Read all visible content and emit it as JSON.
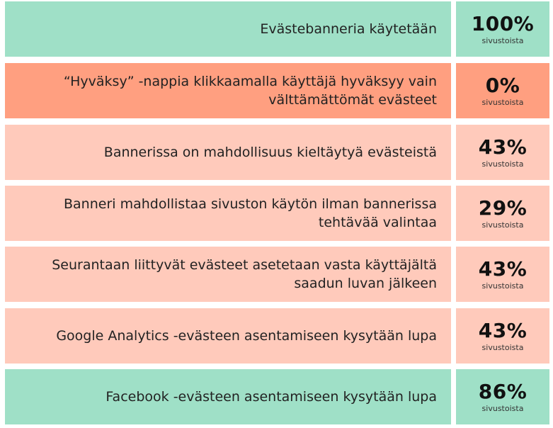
{
  "colors": {
    "good": "#9fe0c7",
    "bad": "#ff9f80",
    "neutral": "#ffcabb"
  },
  "chart_data": {
    "type": "table",
    "unit_label": "sivustoista",
    "rows": [
      {
        "label": "Evästebanneria käytetään",
        "value": 100,
        "display": "100%",
        "status": "good"
      },
      {
        "label": "“Hyväksy” -nappia klikkaamalla käyttäjä hyväksyy vain välttämättömät evästeet",
        "value": 0,
        "display": "0%",
        "status": "bad"
      },
      {
        "label": "Bannerissa on mahdollisuus kieltäytyä evästeistä",
        "value": 43,
        "display": "43%",
        "status": "neutral"
      },
      {
        "label": "Banneri mahdollistaa sivuston käytön ilman bannerissa tehtävää valintaa",
        "value": 29,
        "display": "29%",
        "status": "neutral"
      },
      {
        "label": "Seurantaan liittyvät evästeet asetetaan vasta käyttäjältä saadun luvan jälkeen",
        "value": 43,
        "display": "43%",
        "status": "neutral"
      },
      {
        "label": "Google Analytics -evästeen asentamiseen kysytään lupa",
        "value": 43,
        "display": "43%",
        "status": "neutral"
      },
      {
        "label": "Facebook -evästeen asentamiseen kysytään lupa",
        "value": 86,
        "display": "86%",
        "status": "good"
      }
    ]
  }
}
